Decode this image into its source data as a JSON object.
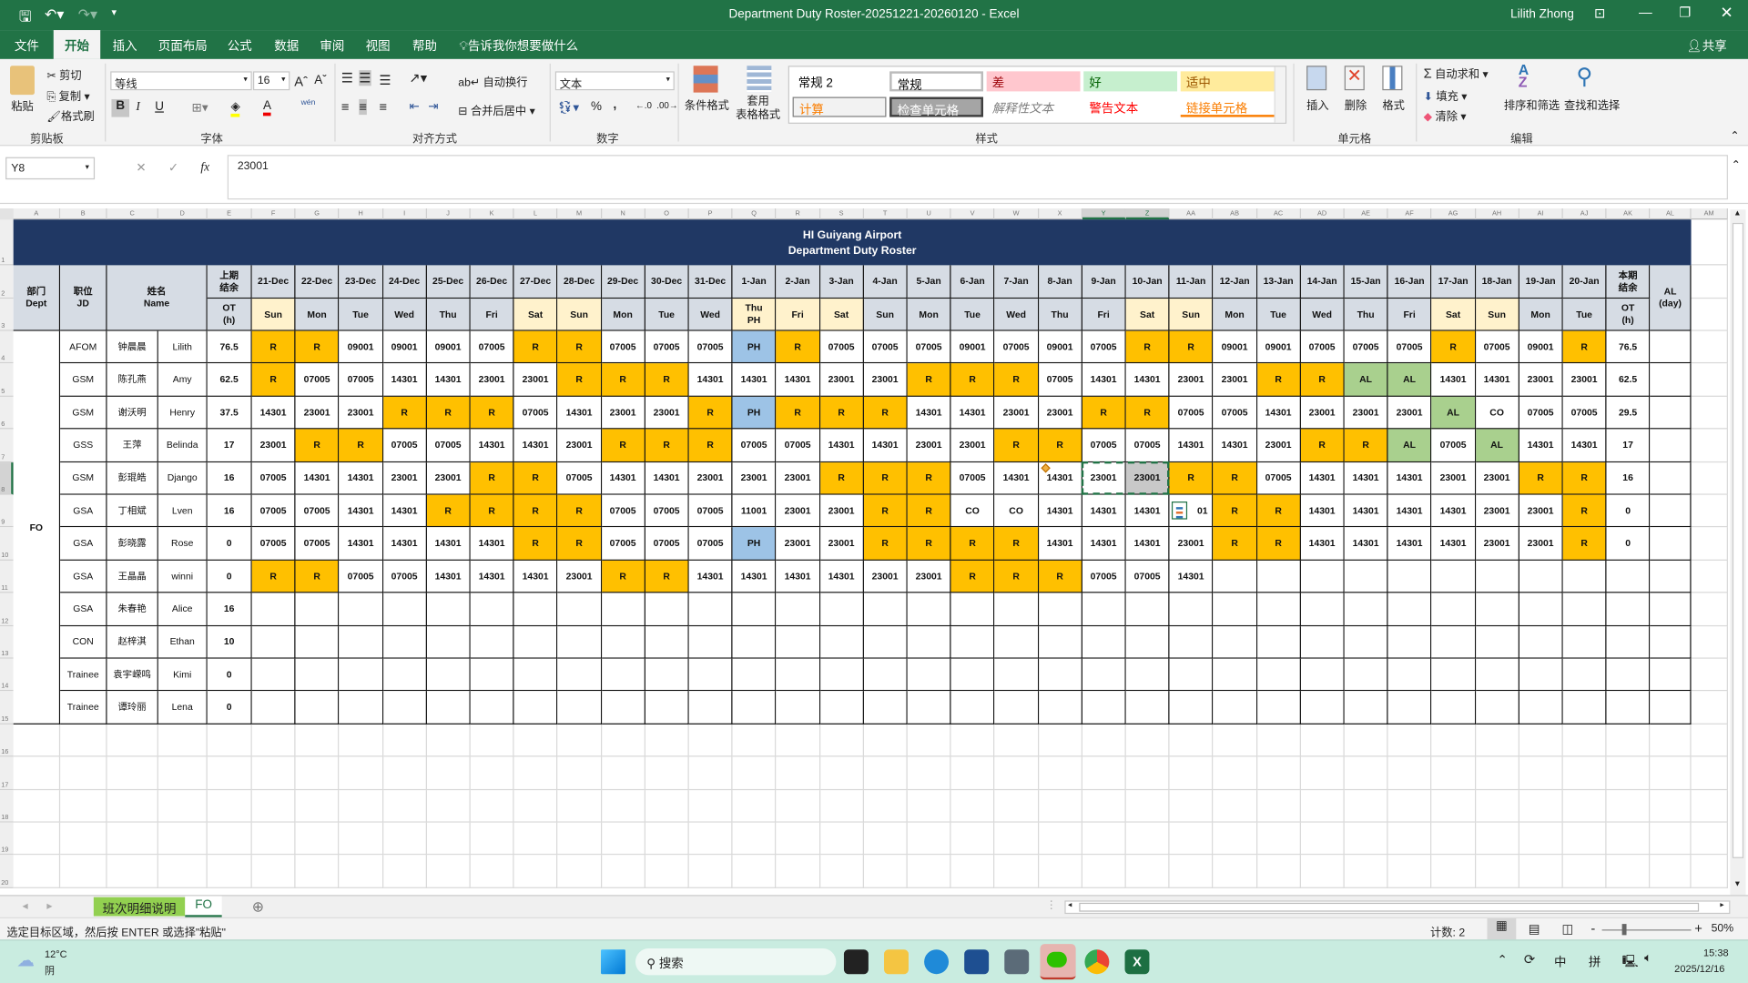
{
  "titlebar": {
    "doc_title": "Department Duty Roster-20251221-20260120  -  Excel",
    "user": "Lilith Zhong",
    "undo_icon": "undo-icon",
    "redo_icon": "redo-icon",
    "save_icon": "save-icon"
  },
  "tabs": [
    {
      "label": "文件"
    },
    {
      "label": "开始",
      "active": true
    },
    {
      "label": "插入"
    },
    {
      "label": "页面布局"
    },
    {
      "label": "公式"
    },
    {
      "label": "数据"
    },
    {
      "label": "审阅"
    },
    {
      "label": "视图"
    },
    {
      "label": "帮助"
    }
  ],
  "tell_me": "告诉我你想要做什么",
  "share": "共享",
  "ribbon": {
    "clipboard": {
      "paste": "粘贴",
      "cut": "剪切",
      "copy": "复制",
      "format_painter": "格式刷",
      "label": "剪贴板"
    },
    "font": {
      "name": "等线",
      "size": "16",
      "bold": "B",
      "italic": "I",
      "underline": "U",
      "phonetic": "wén",
      "label": "字体"
    },
    "alignment": {
      "wrap": "自动换行",
      "merge": "合并后居中",
      "label": "对齐方式"
    },
    "number": {
      "format": "文本",
      "percent": "%",
      "comma": ",",
      "label": "数字"
    },
    "styles": {
      "conditional": "条件格式",
      "table_format": "套用\n表格格式",
      "label": "样式",
      "gallery": [
        {
          "name": "常规 2",
          "bg": "#ffffff",
          "fg": "#000000"
        },
        {
          "name": "常规",
          "bg": "#ffffff",
          "fg": "#000000"
        },
        {
          "name": "差",
          "bg": "#ffc7ce",
          "fg": "#9c0006"
        },
        {
          "name": "好",
          "bg": "#c6efce",
          "fg": "#006100"
        },
        {
          "name": "适中",
          "bg": "#ffeb9c",
          "fg": "#9c5700"
        },
        {
          "name": "计算",
          "bg": "#f2f2f2",
          "fg": "#fa7d00"
        },
        {
          "name": "检查单元格",
          "bg": "#a5a5a5",
          "fg": "#ffffff"
        },
        {
          "name": "解释性文本",
          "bg": "#ffffff",
          "fg": "#7f7f7f"
        },
        {
          "name": "警告文本",
          "bg": "#ffffff",
          "fg": "#ff0000"
        },
        {
          "name": "链接单元格",
          "bg": "#ffffff",
          "fg": "#fa7d00"
        }
      ]
    },
    "cells": {
      "insert": "插入",
      "delete": "删除",
      "format": "格式",
      "label": "单元格"
    },
    "editing": {
      "autosum": "自动求和",
      "fill": "填充",
      "clear": "清除",
      "sort_filter": "排序和筛选",
      "find_select": "查找和选择",
      "label": "编辑"
    }
  },
  "formula_bar": {
    "name_box": "Y8",
    "formula": "23001",
    "fx": "fx"
  },
  "columns": [
    "A",
    "B",
    "C",
    "D",
    "E",
    "F",
    "G",
    "H",
    "I",
    "J",
    "K",
    "L",
    "M",
    "N",
    "O",
    "P",
    "Q",
    "R",
    "S",
    "T",
    "U",
    "V",
    "W",
    "X",
    "Y",
    "Z",
    "AA",
    "AB",
    "AC",
    "AD",
    "AE",
    "AF",
    "AG",
    "AH",
    "AI",
    "AJ",
    "AK",
    "AL",
    "AM"
  ],
  "rows": [
    "1",
    "2",
    "3",
    "4",
    "5",
    "6",
    "7",
    "8",
    "9",
    "10",
    "11",
    "12",
    "13",
    "14",
    "15",
    "16",
    "17",
    "18",
    "19",
    "20"
  ],
  "sheet": {
    "banner": [
      "HI Guiyang Airport",
      "Department Duty Roster"
    ],
    "headers": {
      "dept": "部门\nDept",
      "jd": "职位\nJD",
      "name": "姓名\nName",
      "prev_ot_top": "上期\n结余",
      "prev_ot_bottom": "OT\n(h)",
      "cur_ot_top": "本期\n结余",
      "cur_ot_bottom": "OT\n(h)",
      "al": "AL\n(day)"
    },
    "dates": [
      "21-Dec",
      "22-Dec",
      "23-Dec",
      "24-Dec",
      "25-Dec",
      "26-Dec",
      "27-Dec",
      "28-Dec",
      "29-Dec",
      "30-Dec",
      "31-Dec",
      "1-Jan",
      "2-Jan",
      "3-Jan",
      "4-Jan",
      "5-Jan",
      "6-Jan",
      "7-Jan",
      "8-Jan",
      "9-Jan",
      "10-Jan",
      "11-Jan",
      "12-Jan",
      "13-Jan",
      "14-Jan",
      "15-Jan",
      "16-Jan",
      "17-Jan",
      "18-Jan",
      "19-Jan",
      "20-Jan"
    ],
    "weekdays": [
      "Sun",
      "Mon",
      "Tue",
      "Wed",
      "Thu",
      "Fri",
      "Sat",
      "Sun",
      "Mon",
      "Tue",
      "Wed",
      "Thu\nPH",
      "Fri",
      "Sat",
      "Sun",
      "Mon",
      "Tue",
      "Wed",
      "Thu",
      "Fri",
      "Sat",
      "Sun",
      "Mon",
      "Tue",
      "Wed",
      "Thu",
      "Fri",
      "Sat",
      "Sun",
      "Mon",
      "Tue"
    ],
    "highlight_days": [
      0,
      6,
      7,
      11,
      12,
      13,
      20,
      21,
      27,
      28
    ],
    "dept": "FO",
    "colors": {
      "R": "#ffc000",
      "PH": "#9dc3e6",
      "AL": "#a9d08e",
      "header": "#d6dce4",
      "weekend": "#fff2cc",
      "banner": "#203864",
      "copy_source": "#c8c8c8"
    },
    "staff": [
      {
        "jd": "AFOM",
        "cn": "钟晨晨",
        "en": "Lilith",
        "prev_ot": "76.5",
        "cur_ot": "76.5",
        "al": "",
        "shifts": [
          "R",
          "R",
          "09001",
          "09001",
          "09001",
          "07005",
          "R",
          "R",
          "07005",
          "07005",
          "07005",
          "PH",
          "R",
          "07005",
          "07005",
          "07005",
          "09001",
          "07005",
          "09001",
          "07005",
          "R",
          "R",
          "09001",
          "09001",
          "07005",
          "07005",
          "07005",
          "R",
          "07005",
          "09001",
          "R"
        ]
      },
      {
        "jd": "GSM",
        "cn": "陈孔燕",
        "en": "Amy",
        "prev_ot": "62.5",
        "cur_ot": "62.5",
        "al": "",
        "shifts": [
          "R",
          "07005",
          "07005",
          "14301",
          "14301",
          "23001",
          "23001",
          "R",
          "R",
          "R",
          "14301",
          "14301",
          "14301",
          "23001",
          "23001",
          "R",
          "R",
          "R",
          "07005",
          "14301",
          "14301",
          "23001",
          "23001",
          "R",
          "R",
          "AL",
          "AL",
          "14301",
          "14301",
          "23001",
          "23001"
        ]
      },
      {
        "jd": "GSM",
        "cn": "谢沃明",
        "en": "Henry",
        "prev_ot": "37.5",
        "cur_ot": "29.5",
        "al": "",
        "shifts": [
          "14301",
          "23001",
          "23001",
          "R",
          "R",
          "R",
          "07005",
          "14301",
          "23001",
          "23001",
          "R",
          "PH",
          "R",
          "R",
          "R",
          "14301",
          "14301",
          "23001",
          "23001",
          "R",
          "R",
          "07005",
          "07005",
          "14301",
          "23001",
          "23001",
          "23001",
          "AL",
          "CO",
          "07005",
          "07005"
        ]
      },
      {
        "jd": "GSS",
        "cn": "王萍",
        "en": "Belinda",
        "prev_ot": "17",
        "cur_ot": "17",
        "al": "",
        "shifts": [
          "23001",
          "R",
          "R",
          "07005",
          "07005",
          "14301",
          "14301",
          "23001",
          "R",
          "R",
          "R",
          "07005",
          "07005",
          "14301",
          "14301",
          "23001",
          "23001",
          "R",
          "R",
          "07005",
          "07005",
          "14301",
          "14301",
          "23001",
          "R",
          "R",
          "AL",
          "07005",
          "AL",
          "14301",
          "14301"
        ]
      },
      {
        "jd": "GSM",
        "cn": "彭琨皓",
        "en": "Django",
        "prev_ot": "16",
        "cur_ot": "16",
        "al": "",
        "shifts": [
          "07005",
          "14301",
          "14301",
          "23001",
          "23001",
          "R",
          "R",
          "07005",
          "14301",
          "14301",
          "23001",
          "23001",
          "23001",
          "R",
          "R",
          "R",
          "07005",
          "14301",
          "14301",
          "23001",
          "23001",
          "R",
          "R",
          "07005",
          "14301",
          "14301",
          "14301",
          "23001",
          "23001",
          "R",
          "R"
        ]
      },
      {
        "jd": "GSA",
        "cn": "丁相斌",
        "en": "Lven",
        "prev_ot": "16",
        "cur_ot": "0",
        "al": "",
        "shifts": [
          "07005",
          "07005",
          "14301",
          "14301",
          "R",
          "R",
          "R",
          "R",
          "07005",
          "07005",
          "07005",
          "11001",
          "23001",
          "23001",
          "R",
          "R",
          "CO",
          "CO",
          "14301",
          "14301",
          "14301",
          "01",
          "R",
          "R",
          "14301",
          "14301",
          "14301",
          "14301",
          "23001",
          "23001",
          "R"
        ]
      },
      {
        "jd": "GSA",
        "cn": "彭晓露",
        "en": "Rose",
        "prev_ot": "0",
        "cur_ot": "0",
        "al": "",
        "shifts": [
          "07005",
          "07005",
          "14301",
          "14301",
          "14301",
          "14301",
          "R",
          "R",
          "07005",
          "07005",
          "07005",
          "PH",
          "23001",
          "23001",
          "R",
          "R",
          "R",
          "R",
          "14301",
          "14301",
          "14301",
          "23001",
          "R",
          "R",
          "14301",
          "14301",
          "14301",
          "14301",
          "23001",
          "23001",
          "R"
        ]
      },
      {
        "jd": "GSA",
        "cn": "王晶晶",
        "en": "winni",
        "prev_ot": "0",
        "cur_ot": "",
        "al": "",
        "shifts": [
          "R",
          "R",
          "07005",
          "07005",
          "14301",
          "14301",
          "14301",
          "23001",
          "R",
          "R",
          "14301",
          "14301",
          "14301",
          "14301",
          "23001",
          "23001",
          "R",
          "R",
          "R",
          "07005",
          "07005",
          "14301",
          "",
          "",
          "",
          "",
          "",
          "",
          "",
          "",
          ""
        ]
      },
      {
        "jd": "GSA",
        "cn": "朱春艳",
        "en": "Alice",
        "prev_ot": "16",
        "cur_ot": "",
        "al": "",
        "shifts": []
      },
      {
        "jd": "CON",
        "cn": "赵梓淇",
        "en": "Ethan",
        "prev_ot": "10",
        "cur_ot": "",
        "al": "",
        "shifts": []
      },
      {
        "jd": "Trainee",
        "cn": "袁宇嵘鸣",
        "en": "Kimi",
        "prev_ot": "0",
        "cur_ot": "",
        "al": "",
        "shifts": []
      },
      {
        "jd": "Trainee",
        "cn": "谭玲丽",
        "en": "Lena",
        "prev_ot": "0",
        "cur_ot": "",
        "al": "",
        "shifts": []
      }
    ]
  },
  "sheet_tabs": [
    {
      "label": "班次明细说明",
      "color": "#92d050"
    },
    {
      "label": "FO",
      "active": true
    }
  ],
  "status": {
    "message": "选定目标区域，然后按 ENTER 或选择\"粘贴\"",
    "count": "计数: 2",
    "zoom": "50%",
    "zoom_level": 50
  },
  "taskbar": {
    "weather_temp": "12°C",
    "weather_desc": "阴",
    "search": "搜索",
    "time": "15:38",
    "date": "2025/12/16",
    "ime_lang": "中",
    "ime_mode": "拼"
  }
}
